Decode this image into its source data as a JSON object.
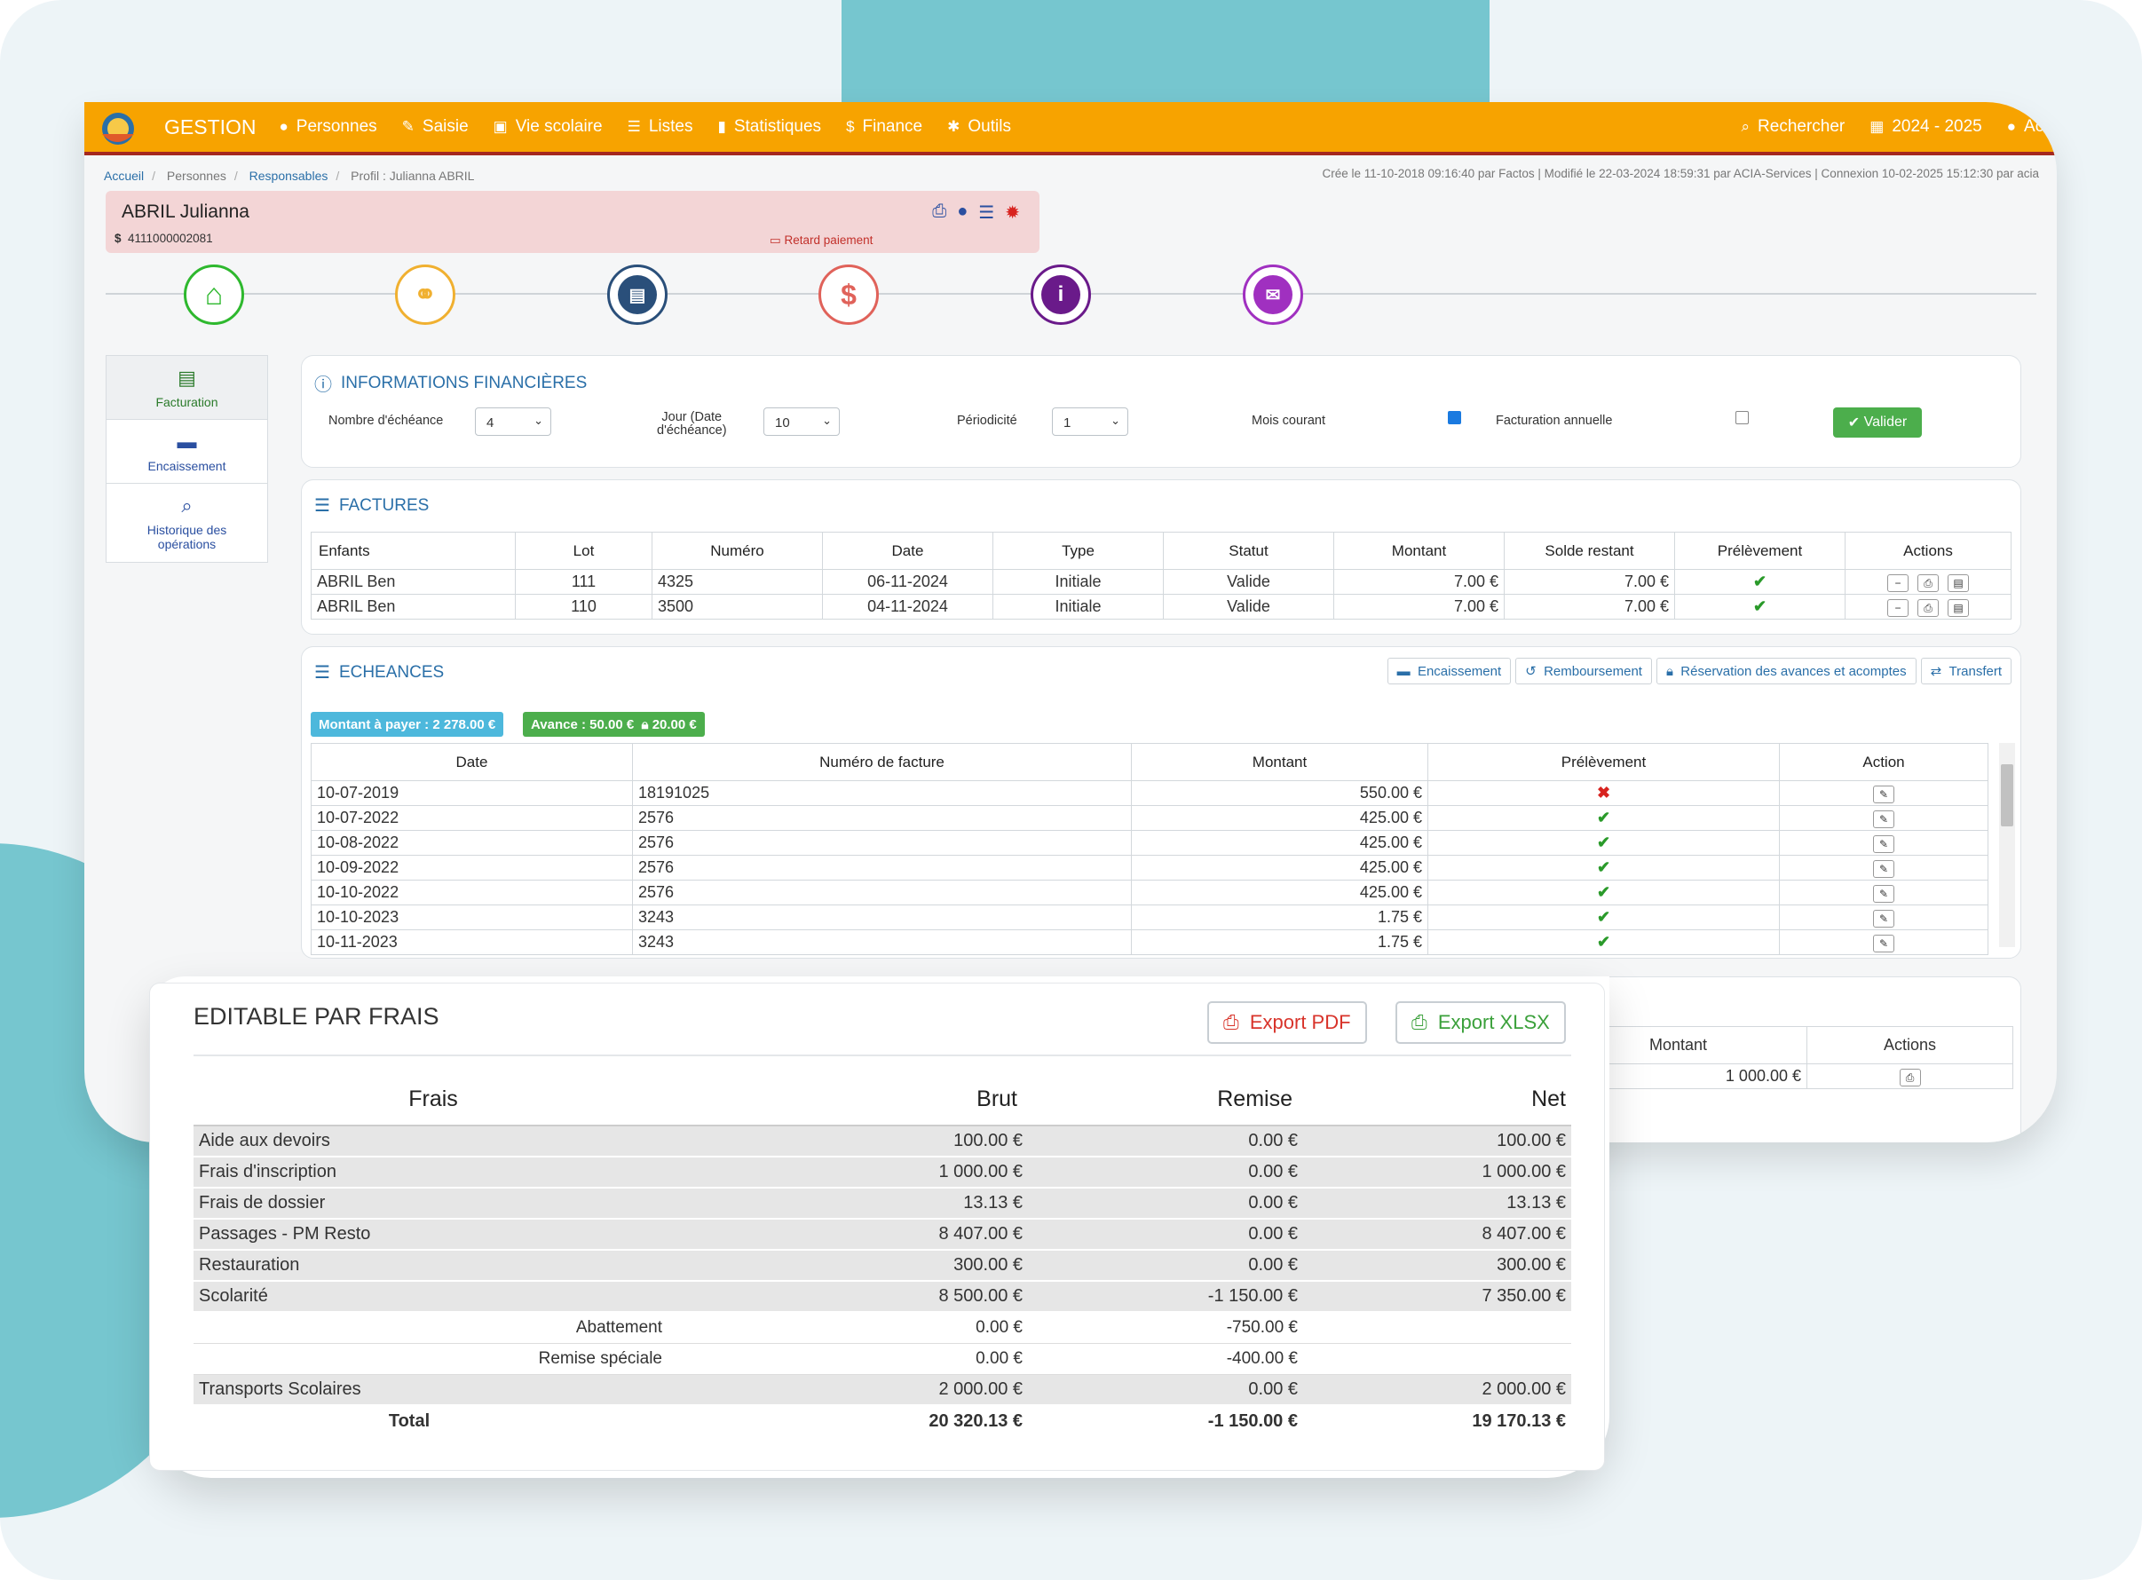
{
  "nav": {
    "brand": "GESTION",
    "items": [
      {
        "icon": "user-icon",
        "label": "Personnes"
      },
      {
        "icon": "edit-icon",
        "label": "Saisie"
      },
      {
        "icon": "school-icon",
        "label": "Vie scolaire"
      },
      {
        "icon": "list-icon",
        "label": "Listes"
      },
      {
        "icon": "bar-chart-icon",
        "label": "Statistiques"
      },
      {
        "icon": "dollar-icon",
        "label": "Finance"
      },
      {
        "icon": "wrench-icon",
        "label": "Outils"
      }
    ],
    "search": "Rechercher",
    "year": "2024 - 2025",
    "user": "Acia"
  },
  "breadcrumb": [
    "Accueil",
    "Personnes",
    "Responsables",
    "Profil : Julianna ABRIL"
  ],
  "meta": "Crée le 11-10-2018 09:16:40 par Factos | Modifié le 22-03-2024 18:59:31 par ACIA-Services | Connexion 10-02-2025 15:12:30 par acia",
  "profile": {
    "name": "ABRIL Julianna",
    "account": "4111000002081",
    "late": "Retard paiement"
  },
  "steps": [
    {
      "icon": "home-icon",
      "color": "#2eb82e"
    },
    {
      "icon": "link-icon",
      "color": "#f0b030"
    },
    {
      "icon": "briefcase-icon",
      "color": "#2a4f7a"
    },
    {
      "icon": "dollar-icon",
      "color": "#e0625a"
    },
    {
      "icon": "info-icon",
      "color": "#6a1a8a"
    },
    {
      "icon": "envelope-icon",
      "color": "#a030c0"
    }
  ],
  "sidebar": [
    {
      "label": "Facturation",
      "icon": "table-icon"
    },
    {
      "label": "Encaissement",
      "icon": "card-icon"
    },
    {
      "label": "Historique des opérations",
      "icon": "search-icon"
    }
  ],
  "infos": {
    "title": "INFORMATIONS FINANCIÈRES",
    "nb_label": "Nombre d'échéance",
    "nb_value": "4",
    "jour_label_1": "Jour (Date",
    "jour_label_2": "d'échéance)",
    "jour_value": "10",
    "period_label": "Périodicité",
    "period_value": "1",
    "mois_label": "Mois courant",
    "mois_checked": true,
    "annuel_label": "Facturation annuelle",
    "annuel_checked": false,
    "valider": "Valider"
  },
  "factures": {
    "title": "FACTURES",
    "headers": [
      "Enfants",
      "Lot",
      "Numéro",
      "Date",
      "Type",
      "Statut",
      "Montant",
      "Solde restant",
      "Prélèvement",
      "Actions"
    ],
    "rows": [
      [
        "ABRIL Ben",
        "111",
        "4325",
        "06-11-2024",
        "Initiale",
        "Valide",
        "7.00 €",
        "7.00 €"
      ],
      [
        "ABRIL Ben",
        "110",
        "3500",
        "04-11-2024",
        "Initiale",
        "Valide",
        "7.00 €",
        "7.00 €"
      ]
    ]
  },
  "echeances": {
    "title": "ECHEANCES",
    "buttons": [
      "Encaissement",
      "Remboursement",
      "Réservation des avances et acomptes",
      "Transfert"
    ],
    "montant_badge": "Montant à payer : 2 278.00 €",
    "avance_badge": "Avance : 50.00 €",
    "lock_badge": "20.00 €",
    "headers": [
      "Date",
      "Numéro de facture",
      "Montant",
      "Prélèvement",
      "Action"
    ],
    "rows": [
      [
        "10-07-2019",
        "18191025",
        "550.00 €",
        "no"
      ],
      [
        "10-07-2022",
        "2576",
        "425.00 €",
        "ok"
      ],
      [
        "10-08-2022",
        "2576",
        "425.00 €",
        "ok"
      ],
      [
        "10-09-2022",
        "2576",
        "425.00 €",
        "ok"
      ],
      [
        "10-10-2022",
        "2576",
        "425.00 €",
        "ok"
      ],
      [
        "10-10-2023",
        "3243",
        "1.75 €",
        "ok"
      ],
      [
        "10-11-2023",
        "3243",
        "1.75 €",
        "ok"
      ]
    ]
  },
  "bottom_table": {
    "headers": [
      "Montant",
      "Actions"
    ],
    "value": "1 000.00 €"
  },
  "editable": {
    "title": "EDITABLE PAR FRAIS",
    "export_pdf": "Export PDF",
    "export_xlsx": "Export XLSX",
    "headers": [
      "Frais",
      "Brut",
      "Remise",
      "Net"
    ],
    "rows": [
      {
        "t": "g",
        "c": [
          "Aide aux devoirs",
          "100.00 €",
          "0.00 €",
          "100.00 €"
        ]
      },
      {
        "t": "g",
        "c": [
          "Frais d'inscription",
          "1 000.00 €",
          "0.00 €",
          "1 000.00 €"
        ]
      },
      {
        "t": "g",
        "c": [
          "Frais de dossier",
          "13.13 €",
          "0.00 €",
          "13.13 €"
        ]
      },
      {
        "t": "g",
        "c": [
          "Passages - PM Resto",
          "8 407.00 €",
          "0.00 €",
          "8 407.00 €"
        ]
      },
      {
        "t": "g",
        "c": [
          "Restauration",
          "300.00 €",
          "0.00 €",
          "300.00 €"
        ]
      },
      {
        "t": "g",
        "c": [
          "Scolarité",
          "8 500.00 €",
          "-1 150.00 €",
          "7 350.00 €"
        ]
      },
      {
        "t": "s",
        "c": [
          "Abattement",
          "0.00 €",
          "-750.00 €",
          ""
        ]
      },
      {
        "t": "s",
        "c": [
          "Remise spéciale",
          "0.00 €",
          "-400.00 €",
          ""
        ]
      },
      {
        "t": "g",
        "c": [
          "Transports Scolaires",
          "2 000.00 €",
          "0.00 €",
          "2 000.00 €"
        ]
      },
      {
        "t": "tot",
        "c": [
          "Total",
          "20 320.13 €",
          "-1 150.00 €",
          "19 170.13 €"
        ]
      }
    ]
  }
}
